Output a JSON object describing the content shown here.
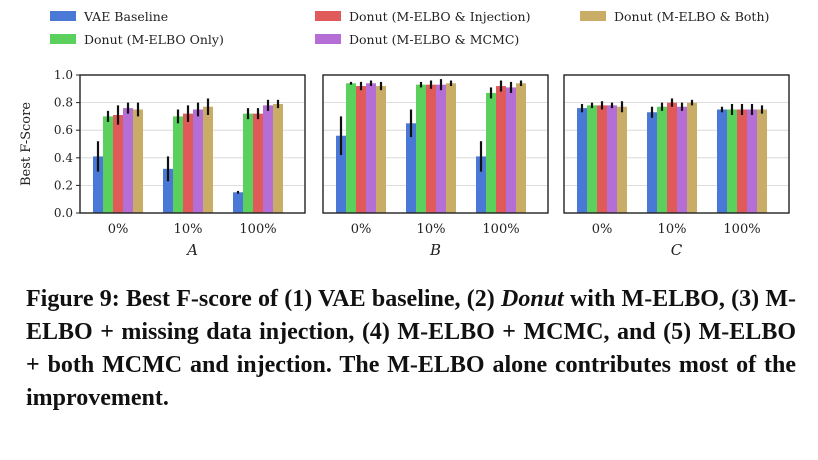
{
  "figure": {
    "colors": [
      "#4a78d6",
      "#5cd05c",
      "#e05a5a",
      "#b56ed6",
      "#c9ad66"
    ],
    "legend_placement": "top"
  },
  "chart_data": [
    {
      "type": "bar",
      "xlabel": "A",
      "ylabel": "Best F-Score",
      "ylim": [
        0,
        1.0
      ],
      "yticks": [
        "0.0",
        "0.2",
        "0.4",
        "0.6",
        "0.8",
        "1.0"
      ],
      "grid": true,
      "categories": [
        "0%",
        "10%",
        "100%"
      ],
      "series": [
        {
          "name": "VAE Baseline",
          "values": [
            0.41,
            0.32,
            0.15
          ],
          "err": [
            0.11,
            0.09,
            0.01
          ]
        },
        {
          "name": "Donut (M-ELBO Only)",
          "values": [
            0.7,
            0.7,
            0.72
          ],
          "err": [
            0.04,
            0.05,
            0.04
          ]
        },
        {
          "name": "Donut (M-ELBO & Injection)",
          "values": [
            0.71,
            0.72,
            0.72
          ],
          "err": [
            0.07,
            0.06,
            0.04
          ]
        },
        {
          "name": "Donut (M-ELBO & MCMC)",
          "values": [
            0.76,
            0.75,
            0.78
          ],
          "err": [
            0.04,
            0.05,
            0.04
          ]
        },
        {
          "name": "Donut (M-ELBO & Both)",
          "values": [
            0.75,
            0.77,
            0.79
          ],
          "err": [
            0.05,
            0.06,
            0.03
          ]
        }
      ]
    },
    {
      "type": "bar",
      "xlabel": "B",
      "ylim": [
        0,
        1.0
      ],
      "grid": true,
      "categories": [
        "0%",
        "10%",
        "100%"
      ],
      "series": [
        {
          "name": "VAE Baseline",
          "values": [
            0.56,
            0.65,
            0.41
          ],
          "err": [
            0.14,
            0.1,
            0.11
          ]
        },
        {
          "name": "Donut (M-ELBO Only)",
          "values": [
            0.94,
            0.93,
            0.87
          ],
          "err": [
            0.01,
            0.02,
            0.04
          ]
        },
        {
          "name": "Donut (M-ELBO & Injection)",
          "values": [
            0.92,
            0.93,
            0.92
          ],
          "err": [
            0.03,
            0.03,
            0.04
          ]
        },
        {
          "name": "Donut (M-ELBO & MCMC)",
          "values": [
            0.94,
            0.93,
            0.91
          ],
          "err": [
            0.02,
            0.04,
            0.04
          ]
        },
        {
          "name": "Donut (M-ELBO & Both)",
          "values": [
            0.92,
            0.94,
            0.94
          ],
          "err": [
            0.03,
            0.02,
            0.02
          ]
        }
      ]
    },
    {
      "type": "bar",
      "xlabel": "C",
      "ylim": [
        0,
        1.0
      ],
      "grid": true,
      "categories": [
        "0%",
        "10%",
        "100%"
      ],
      "series": [
        {
          "name": "VAE Baseline",
          "values": [
            0.76,
            0.73,
            0.75
          ],
          "err": [
            0.03,
            0.04,
            0.02
          ]
        },
        {
          "name": "Donut (M-ELBO Only)",
          "values": [
            0.78,
            0.77,
            0.75
          ],
          "err": [
            0.02,
            0.03,
            0.04
          ]
        },
        {
          "name": "Donut (M-ELBO & Injection)",
          "values": [
            0.78,
            0.8,
            0.75
          ],
          "err": [
            0.03,
            0.03,
            0.04
          ]
        },
        {
          "name": "Donut (M-ELBO & MCMC)",
          "values": [
            0.78,
            0.77,
            0.75
          ],
          "err": [
            0.02,
            0.03,
            0.04
          ]
        },
        {
          "name": "Donut (M-ELBO & Both)",
          "values": [
            0.77,
            0.8,
            0.75
          ],
          "err": [
            0.04,
            0.02,
            0.03
          ]
        }
      ]
    }
  ],
  "caption": {
    "prefix": "Figure 9: Best F-score of (1) VAE baseline, (2) ",
    "emph": "Donut",
    "suffix": " with M-ELBO, (3) M-ELBO + missing data injection, (4) M-ELBO + MCMC, and (5) M-ELBO + both MCMC and injection. The M-ELBO alone contributes most of the improvement."
  }
}
